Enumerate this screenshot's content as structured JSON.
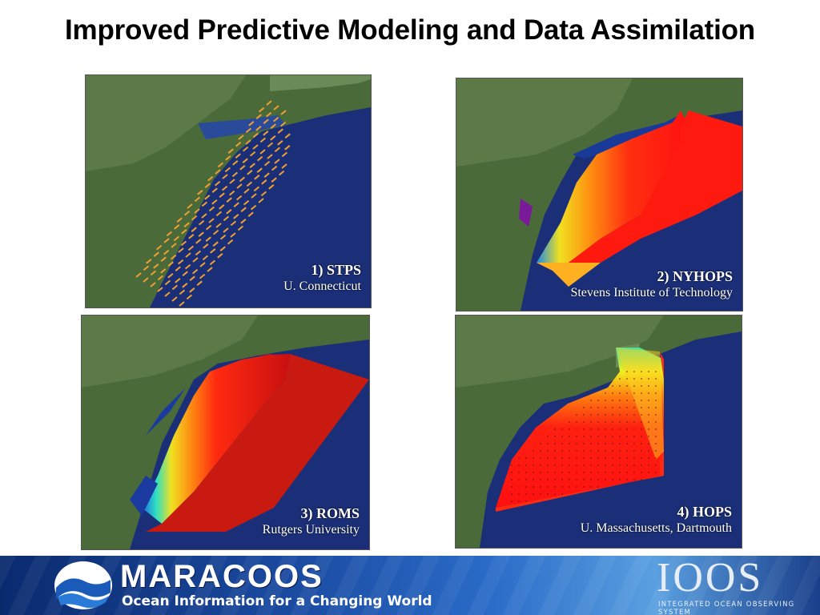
{
  "slide": {
    "title": "Improved Predictive Modeling and Data Assimilation"
  },
  "panels": [
    {
      "number_name": "1) STPS",
      "organization": "U. Connecticut"
    },
    {
      "number_name": "2) NYHOPS",
      "organization": "Stevens Institute of Technology"
    },
    {
      "number_name": "3) ROMS",
      "organization": "Rutgers University"
    },
    {
      "number_name": "4) HOPS",
      "organization": "U. Massachusetts, Dartmouth"
    }
  ],
  "footer": {
    "brand": "MARACOOS",
    "tagline": "Ocean Information for a Changing World",
    "partner_logo": "IOOS",
    "partner_subtitle": "INTEGRATED OCEAN OBSERVING SYSTEM"
  },
  "colors": {
    "ocean": "#1b2f78",
    "land": "#4a6a3a",
    "warm": "#e82a10",
    "cool": "#1a6ae8",
    "vectors": "#f0a030"
  },
  "icons": [
    "maracoos-wave-logo-icon",
    "ioos-globe-logo-icon"
  ]
}
